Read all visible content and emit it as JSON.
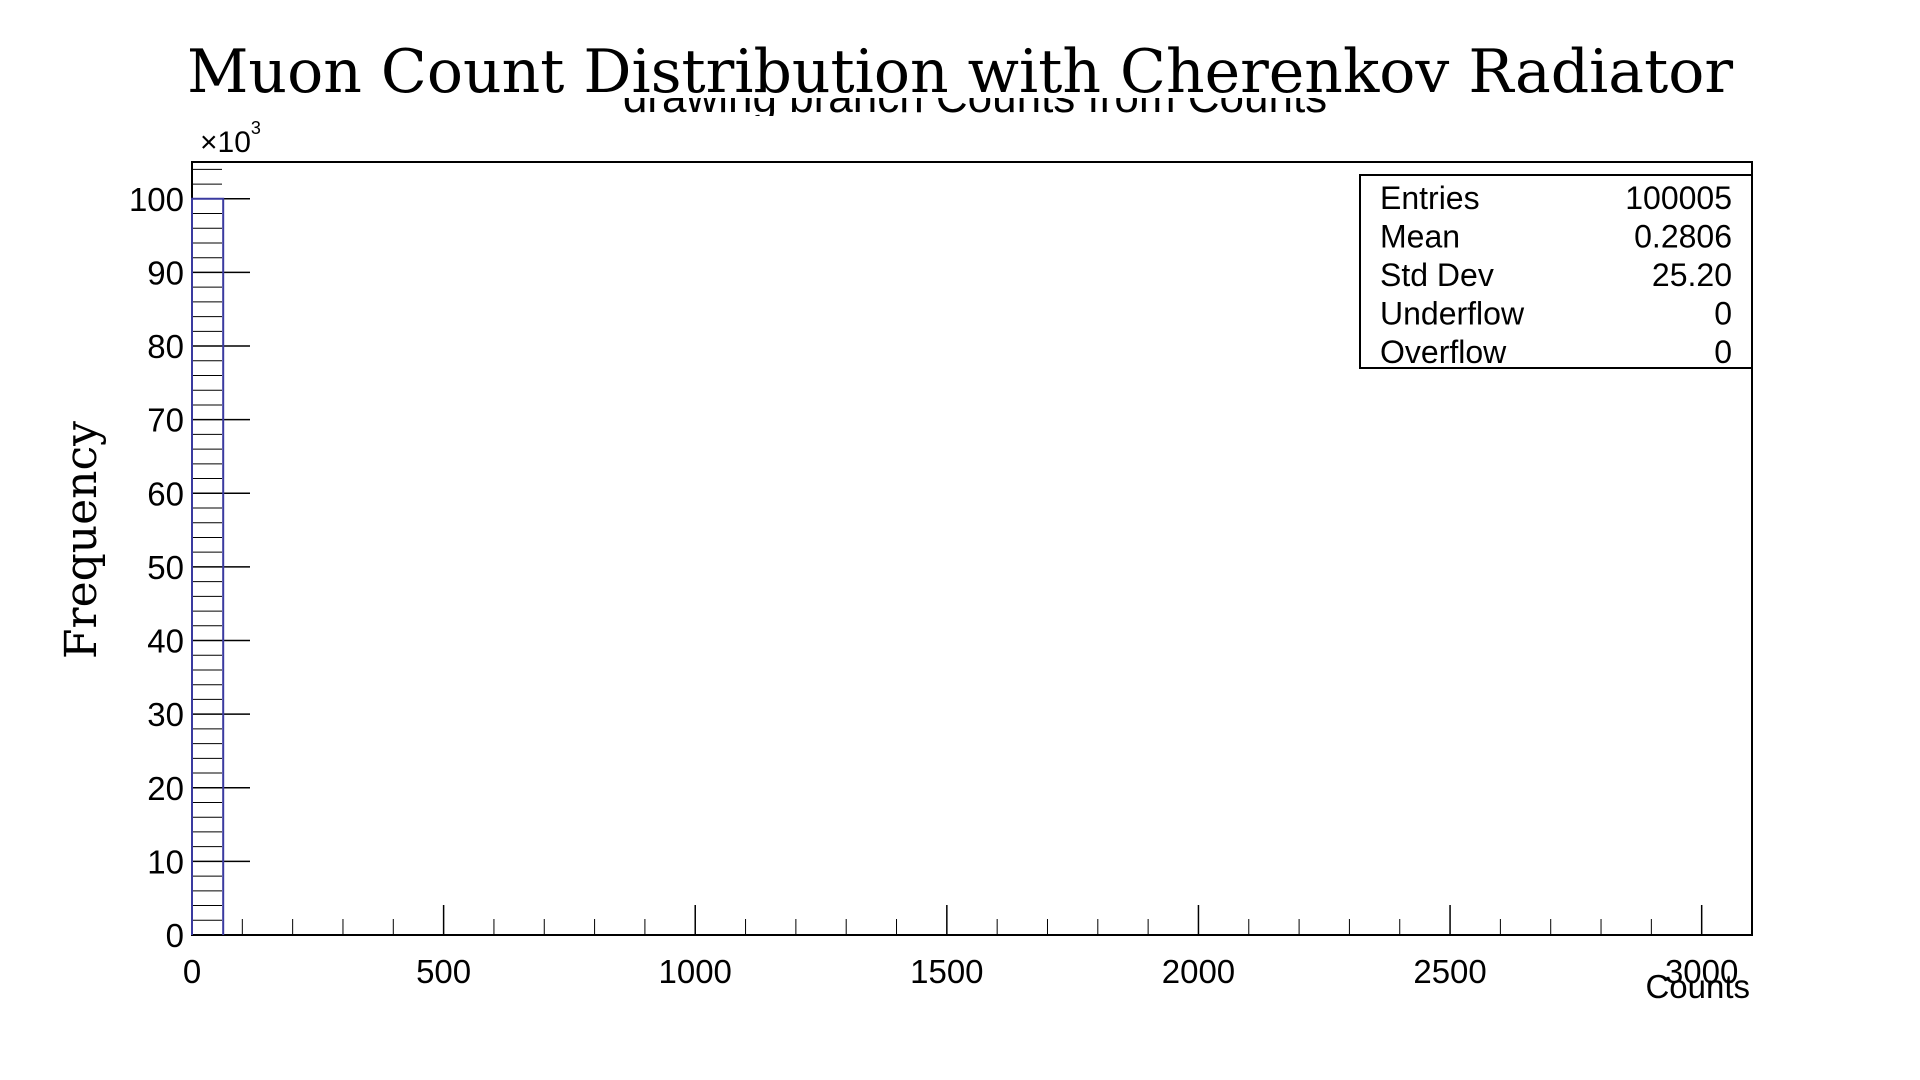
{
  "chart_data": {
    "type": "bar",
    "title": "Muon Count Distribution with Cherenkov Radiator",
    "subtitle": "drawing branch Counts from Counts",
    "xlabel": "Counts",
    "ylabel": "Frequency",
    "y_multiplier": "×10",
    "y_multiplier_exp": "3",
    "xlim": [
      0,
      3100
    ],
    "ylim": [
      0,
      105
    ],
    "x_ticks": [
      0,
      500,
      1000,
      1500,
      2000,
      2500,
      3000
    ],
    "y_ticks": [
      0,
      10,
      20,
      30,
      40,
      50,
      60,
      70,
      80,
      90,
      100
    ],
    "series": [
      {
        "x_range": [
          0,
          62
        ],
        "y": 100
      }
    ],
    "colors": {
      "histogram": "#3a3aa0",
      "axes": "#000000"
    },
    "grid": false,
    "stats_box": {
      "placement": "top-right",
      "rows": [
        {
          "label": "Entries",
          "value": "100005"
        },
        {
          "label": "Mean",
          "value": "0.2806"
        },
        {
          "label": "Std Dev",
          "value": "25.20"
        },
        {
          "label": "Underflow",
          "value": "0"
        },
        {
          "label": "Overflow",
          "value": "0"
        }
      ]
    }
  }
}
